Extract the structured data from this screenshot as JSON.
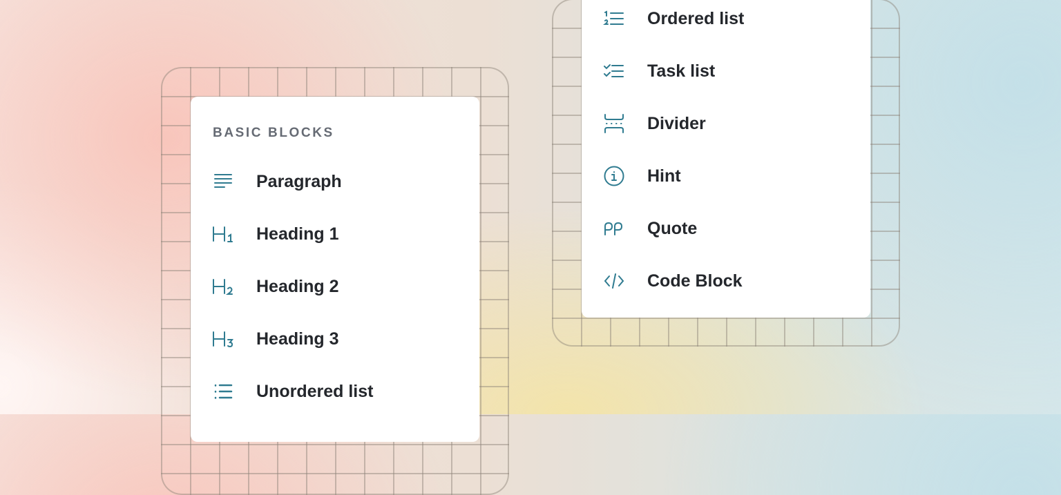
{
  "left_menu": {
    "heading": "BASIC BLOCKS",
    "items": [
      {
        "label": "Paragraph",
        "icon": "paragraph-icon"
      },
      {
        "label": "Heading 1",
        "icon": "heading-1-icon"
      },
      {
        "label": "Heading 2",
        "icon": "heading-2-icon"
      },
      {
        "label": "Heading 3",
        "icon": "heading-3-icon"
      },
      {
        "label": "Unordered list",
        "icon": "unordered-list-icon"
      }
    ]
  },
  "right_menu": {
    "items": [
      {
        "label": "Ordered list",
        "icon": "ordered-list-icon"
      },
      {
        "label": "Task list",
        "icon": "task-list-icon"
      },
      {
        "label": "Divider",
        "icon": "divider-icon"
      },
      {
        "label": "Hint",
        "icon": "info-icon"
      },
      {
        "label": "Quote",
        "icon": "quote-icon"
      },
      {
        "label": "Code Block",
        "icon": "code-icon"
      }
    ]
  },
  "colors": {
    "accent": "#2f7b90",
    "text": "#24272c",
    "heading": "#666b74"
  }
}
